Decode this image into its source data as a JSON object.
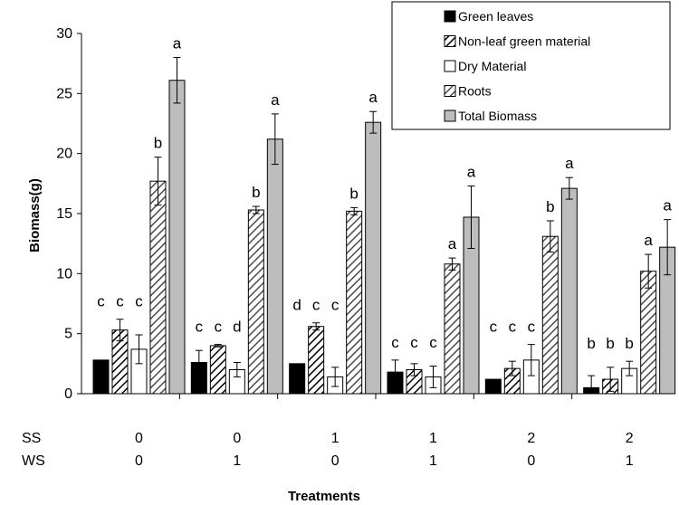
{
  "chart_data": {
    "type": "bar",
    "ylabel": "Biomass(g)",
    "xlabel": "Treatments",
    "ylim": [
      0,
      30
    ],
    "yticks": [
      0,
      5,
      10,
      15,
      20,
      25,
      30
    ],
    "grid": false,
    "legend_position": "top-right",
    "row_labels": {
      "ss": "SS",
      "ws": "WS"
    },
    "groups": [
      {
        "ss": "0",
        "ws": "0"
      },
      {
        "ss": "0",
        "ws": "1"
      },
      {
        "ss": "1",
        "ws": "0"
      },
      {
        "ss": "1",
        "ws": "1"
      },
      {
        "ss": "2",
        "ws": "0"
      },
      {
        "ss": "2",
        "ws": "1"
      }
    ],
    "series": [
      {
        "name": "Green leaves",
        "pattern": "solid-black",
        "values": [
          2.8,
          2.6,
          2.5,
          1.8,
          1.2,
          0.5
        ],
        "errors": [
          0.0,
          1.0,
          0.0,
          1.0,
          0.0,
          1.0
        ],
        "labels": [
          "c",
          "c",
          "d",
          "c",
          "c",
          "b"
        ]
      },
      {
        "name": "Non-leaf green material",
        "pattern": "hatch-black",
        "values": [
          5.3,
          4.0,
          5.6,
          2.0,
          2.1,
          1.2
        ],
        "errors": [
          0.9,
          0.1,
          0.3,
          0.5,
          0.6,
          1.0
        ],
        "labels": [
          "c",
          "c",
          "c",
          "c",
          "c",
          "b"
        ]
      },
      {
        "name": "Dry Material",
        "pattern": "white",
        "values": [
          3.7,
          2.0,
          1.4,
          1.4,
          2.8,
          2.1
        ],
        "errors": [
          1.2,
          0.6,
          0.8,
          0.9,
          1.3,
          0.6
        ],
        "labels": [
          "c",
          "d",
          "c",
          "c",
          "c",
          "b"
        ]
      },
      {
        "name": "Roots",
        "pattern": "hatch-gray",
        "values": [
          17.7,
          15.3,
          15.2,
          10.8,
          13.1,
          10.2
        ],
        "errors": [
          2.0,
          0.3,
          0.3,
          0.5,
          1.3,
          1.4
        ],
        "labels": [
          "b",
          "b",
          "b",
          "a",
          "b",
          "a"
        ]
      },
      {
        "name": "Total Biomass",
        "pattern": "solid-gray",
        "values": [
          26.1,
          21.2,
          22.6,
          14.7,
          17.1,
          12.2
        ],
        "errors": [
          1.9,
          2.1,
          0.9,
          2.6,
          0.9,
          2.3
        ],
        "labels": [
          "a",
          "a",
          "a",
          "a",
          "a",
          "a"
        ]
      }
    ]
  }
}
